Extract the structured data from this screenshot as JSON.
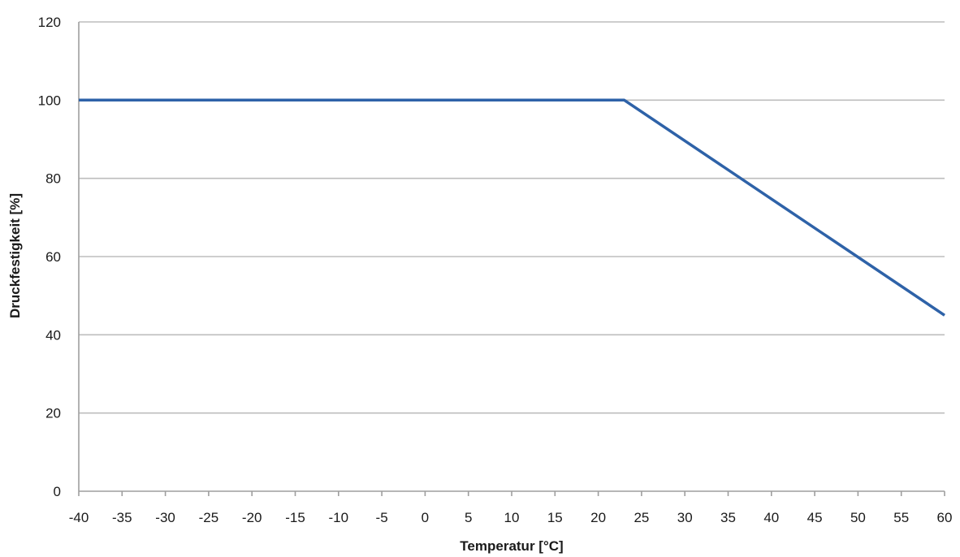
{
  "chart_data": {
    "type": "line",
    "title": "",
    "xlabel": "Temperatur [°C]",
    "ylabel": "Druckfestigkeit [%]",
    "xlim": [
      -40,
      60
    ],
    "ylim": [
      0,
      120
    ],
    "x_ticks": [
      -40,
      -35,
      -30,
      -25,
      -20,
      -15,
      -10,
      -5,
      0,
      5,
      10,
      15,
      20,
      25,
      30,
      35,
      40,
      45,
      50,
      55,
      60
    ],
    "y_ticks": [
      0,
      20,
      40,
      60,
      80,
      100,
      120
    ],
    "grid": "horizontal",
    "legend": "none",
    "series": [
      {
        "color": "#2e62a8",
        "points": [
          {
            "x": -40,
            "y": 100
          },
          {
            "x": 23,
            "y": 100
          },
          {
            "x": 60,
            "y": 45
          }
        ]
      }
    ]
  }
}
